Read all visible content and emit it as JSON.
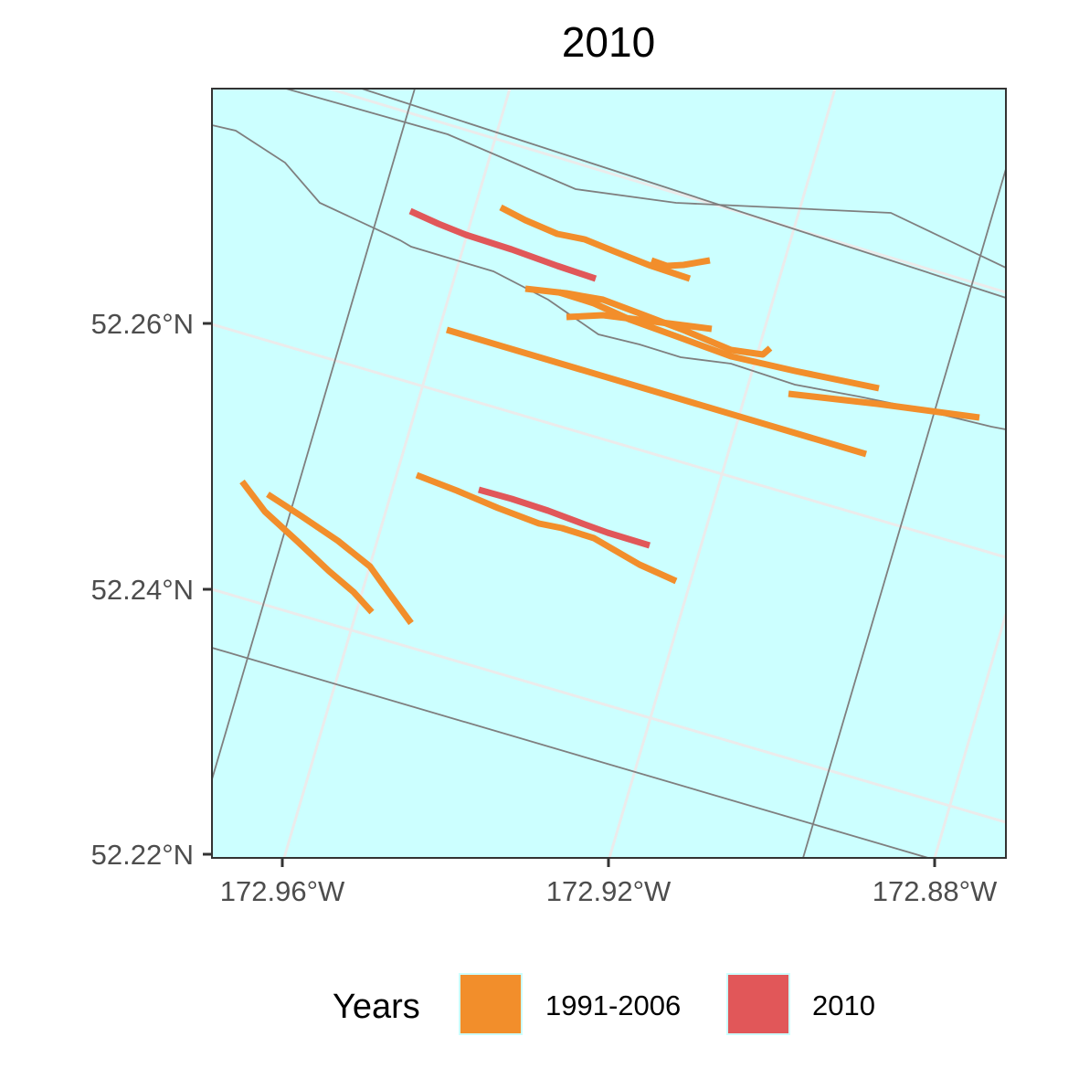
{
  "chart_data": {
    "type": "map",
    "title": "2010",
    "x_axis": {
      "ticks": [
        {
          "value": -172.96,
          "label": "172.96°W"
        },
        {
          "value": -172.92,
          "label": "172.92°W"
        },
        {
          "value": -172.88,
          "label": "172.88°W"
        }
      ]
    },
    "y_axis": {
      "ticks": [
        {
          "value": 52.26,
          "label": "52.26°N"
        },
        {
          "value": 52.24,
          "label": "52.24°N"
        },
        {
          "value": 52.22,
          "label": "52.22°N"
        }
      ]
    },
    "grid": true,
    "background_color": "#CCFFFF",
    "legend": {
      "position": "bottom",
      "title": "Years",
      "entries": [
        {
          "label": "1991-2006",
          "color": "#F28E2B"
        },
        {
          "label": "2010",
          "color": "#E15759"
        }
      ]
    }
  }
}
